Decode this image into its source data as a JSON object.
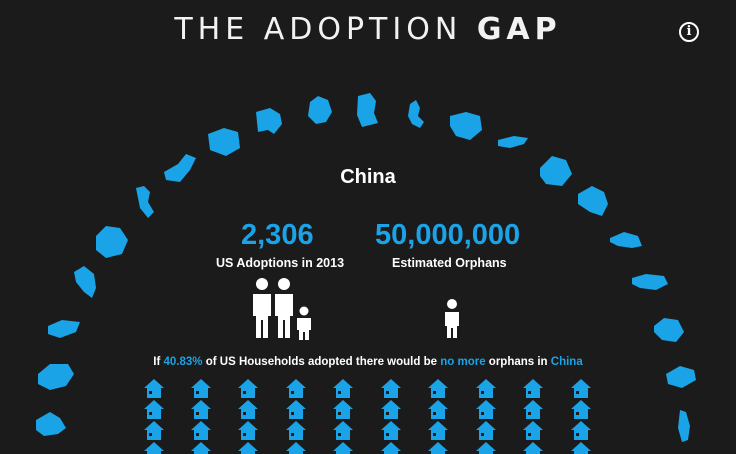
{
  "header": {
    "title_prefix": "THE ADOPTION",
    "title_gap": "GAP",
    "info_icon": "info-circle-icon"
  },
  "selected_country": {
    "name": "China",
    "us_adoptions_value": "2,306",
    "us_adoptions_label": "US Adoptions in 2013",
    "orphans_value": "50,000,000",
    "orphans_label": "Estimated Orphans",
    "family_icon": "family-icon",
    "child_icon": "child-icon"
  },
  "households_sentence": {
    "part1": "If ",
    "percent": "40.83%",
    "part2": " of US Households adopted there would be ",
    "highlight": "no more",
    "part3": " orphans in ",
    "country": "China"
  },
  "house_icon": "house-icon",
  "colors": {
    "background": "#1b1b1b",
    "accent": "#1aa3e6",
    "text": "#ffffff"
  }
}
